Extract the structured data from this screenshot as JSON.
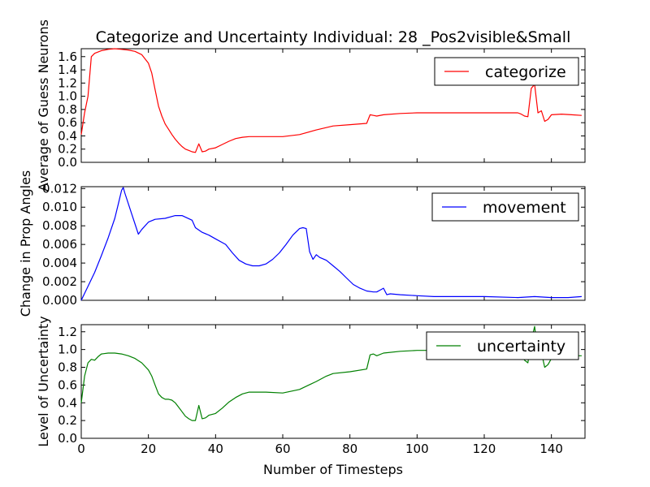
{
  "chart_data": {
    "type": "line",
    "title": "Categorize and Uncertainty Individual: 28 _Pos2visible&Small",
    "xlabel": "Number of Timesteps",
    "xlim": [
      0,
      150
    ],
    "xticks": [
      0,
      20,
      40,
      60,
      80,
      100,
      120,
      140
    ],
    "xtick_labels": [
      "0",
      "20",
      "40",
      "60",
      "80",
      "100",
      "120",
      "140"
    ],
    "grid": false,
    "panels": [
      {
        "ylabel": "Average of Guess Neurons",
        "ylim": [
          0,
          1.72
        ],
        "yticks": [
          0,
          0.2,
          0.4,
          0.6,
          0.8,
          1.0,
          1.2,
          1.4,
          1.6
        ],
        "ytick_labels": [
          "0.0",
          "0.2",
          "0.4",
          "0.6",
          "0.8",
          "1.0",
          "1.2",
          "1.4",
          "1.6"
        ],
        "legend_position": "top-right",
        "series": [
          {
            "name": "categorize",
            "color": "#ff0000",
            "points": [
              [
                0,
                0.42
              ],
              [
                1,
                0.75
              ],
              [
                2,
                1.0
              ],
              [
                3,
                1.6
              ],
              [
                4,
                1.65
              ],
              [
                6,
                1.69
              ],
              [
                8,
                1.71
              ],
              [
                10,
                1.72
              ],
              [
                12,
                1.71
              ],
              [
                14,
                1.7
              ],
              [
                16,
                1.68
              ],
              [
                18,
                1.63
              ],
              [
                20,
                1.5
              ],
              [
                21,
                1.35
              ],
              [
                22,
                1.1
              ],
              [
                23,
                0.85
              ],
              [
                24,
                0.7
              ],
              [
                25,
                0.58
              ],
              [
                26,
                0.5
              ],
              [
                27,
                0.42
              ],
              [
                28,
                0.35
              ],
              [
                29,
                0.29
              ],
              [
                30,
                0.24
              ],
              [
                31,
                0.2
              ],
              [
                32,
                0.18
              ],
              [
                33,
                0.16
              ],
              [
                34,
                0.15
              ],
              [
                35,
                0.28
              ],
              [
                36,
                0.16
              ],
              [
                37,
                0.17
              ],
              [
                38,
                0.2
              ],
              [
                40,
                0.22
              ],
              [
                42,
                0.27
              ],
              [
                44,
                0.32
              ],
              [
                46,
                0.36
              ],
              [
                48,
                0.38
              ],
              [
                50,
                0.39
              ],
              [
                55,
                0.39
              ],
              [
                60,
                0.39
              ],
              [
                65,
                0.42
              ],
              [
                70,
                0.49
              ],
              [
                75,
                0.55
              ],
              [
                80,
                0.57
              ],
              [
                85,
                0.59
              ],
              [
                86,
                0.72
              ],
              [
                87,
                0.71
              ],
              [
                88,
                0.7
              ],
              [
                90,
                0.72
              ],
              [
                95,
                0.74
              ],
              [
                100,
                0.75
              ],
              [
                110,
                0.75
              ],
              [
                120,
                0.75
              ],
              [
                130,
                0.75
              ],
              [
                131,
                0.73
              ],
              [
                132,
                0.7
              ],
              [
                133,
                0.69
              ],
              [
                134,
                1.12
              ],
              [
                135,
                1.18
              ],
              [
                136,
                0.75
              ],
              [
                137,
                0.78
              ],
              [
                138,
                0.62
              ],
              [
                139,
                0.65
              ],
              [
                140,
                0.72
              ],
              [
                143,
                0.73
              ],
              [
                146,
                0.72
              ],
              [
                149,
                0.71
              ]
            ]
          }
        ]
      },
      {
        "ylabel": "Change in Prop Angles",
        "ylim": [
          0,
          0.0122
        ],
        "yticks": [
          0,
          0.002,
          0.004,
          0.006,
          0.008,
          0.01,
          0.012
        ],
        "ytick_labels": [
          "0.000",
          "0.002",
          "0.004",
          "0.006",
          "0.008",
          "0.010",
          "0.012"
        ],
        "legend_position": "top-right",
        "series": [
          {
            "name": "movement",
            "color": "#0000ff",
            "points": [
              [
                0,
                0.0
              ],
              [
                2,
                0.0015
              ],
              [
                4,
                0.003
              ],
              [
                6,
                0.0048
              ],
              [
                8,
                0.0067
              ],
              [
                10,
                0.0088
              ],
              [
                11,
                0.0103
              ],
              [
                12,
                0.0118
              ],
              [
                12.5,
                0.0121
              ],
              [
                13,
                0.0115
              ],
              [
                15,
                0.0093
              ],
              [
                17,
                0.0071
              ],
              [
                18,
                0.0076
              ],
              [
                20,
                0.0084
              ],
              [
                22,
                0.0087
              ],
              [
                25,
                0.0088
              ],
              [
                28,
                0.0091
              ],
              [
                30,
                0.0091
              ],
              [
                33,
                0.0086
              ],
              [
                34,
                0.0078
              ],
              [
                36,
                0.0073
              ],
              [
                38,
                0.007
              ],
              [
                40,
                0.0066
              ],
              [
                42,
                0.0062
              ],
              [
                43,
                0.006
              ],
              [
                45,
                0.0051
              ],
              [
                47,
                0.0043
              ],
              [
                49,
                0.0039
              ],
              [
                51,
                0.0037
              ],
              [
                53,
                0.0037
              ],
              [
                55,
                0.0039
              ],
              [
                57,
                0.0044
              ],
              [
                59,
                0.0051
              ],
              [
                61,
                0.006
              ],
              [
                63,
                0.007
              ],
              [
                65,
                0.0077
              ],
              [
                66,
                0.0078
              ],
              [
                67,
                0.0077
              ],
              [
                68,
                0.0052
              ],
              [
                69,
                0.0044
              ],
              [
                70,
                0.0049
              ],
              [
                71,
                0.0046
              ],
              [
                73,
                0.0043
              ],
              [
                75,
                0.0037
              ],
              [
                77,
                0.0031
              ],
              [
                79,
                0.0024
              ],
              [
                81,
                0.0017
              ],
              [
                83,
                0.0013
              ],
              [
                85,
                0.001
              ],
              [
                87,
                0.0009
              ],
              [
                88,
                0.0009
              ],
              [
                89,
                0.0011
              ],
              [
                90,
                0.0013
              ],
              [
                91,
                0.0006
              ],
              [
                92,
                0.0007
              ],
              [
                95,
                0.0006
              ],
              [
                100,
                0.0005
              ],
              [
                105,
                0.0004
              ],
              [
                110,
                0.0004
              ],
              [
                120,
                0.0004
              ],
              [
                130,
                0.0003
              ],
              [
                135,
                0.0004
              ],
              [
                140,
                0.0003
              ],
              [
                145,
                0.0003
              ],
              [
                149,
                0.0004
              ]
            ]
          }
        ]
      },
      {
        "ylabel": "Level of Uncertainty",
        "ylim": [
          0,
          1.28
        ],
        "yticks": [
          0,
          0.2,
          0.4,
          0.6,
          0.8,
          1.0,
          1.2
        ],
        "ytick_labels": [
          "0.0",
          "0.2",
          "0.4",
          "0.6",
          "0.8",
          "1.0",
          "1.2"
        ],
        "legend_position": "top-right",
        "series": [
          {
            "name": "uncertainty",
            "color": "#008000",
            "points": [
              [
                0,
                0.4
              ],
              [
                1,
                0.7
              ],
              [
                2,
                0.85
              ],
              [
                3,
                0.89
              ],
              [
                4,
                0.88
              ],
              [
                5,
                0.92
              ],
              [
                6,
                0.95
              ],
              [
                8,
                0.96
              ],
              [
                10,
                0.96
              ],
              [
                12,
                0.95
              ],
              [
                14,
                0.93
              ],
              [
                16,
                0.9
              ],
              [
                18,
                0.85
              ],
              [
                20,
                0.77
              ],
              [
                21,
                0.7
              ],
              [
                22,
                0.6
              ],
              [
                23,
                0.5
              ],
              [
                24,
                0.46
              ],
              [
                25,
                0.44
              ],
              [
                26,
                0.44
              ],
              [
                27,
                0.43
              ],
              [
                28,
                0.4
              ],
              [
                29,
                0.35
              ],
              [
                30,
                0.3
              ],
              [
                31,
                0.25
              ],
              [
                32,
                0.22
              ],
              [
                33,
                0.2
              ],
              [
                34,
                0.2
              ],
              [
                35,
                0.37
              ],
              [
                36,
                0.22
              ],
              [
                37,
                0.23
              ],
              [
                38,
                0.26
              ],
              [
                40,
                0.28
              ],
              [
                42,
                0.34
              ],
              [
                44,
                0.41
              ],
              [
                46,
                0.46
              ],
              [
                48,
                0.5
              ],
              [
                50,
                0.52
              ],
              [
                55,
                0.52
              ],
              [
                60,
                0.51
              ],
              [
                65,
                0.55
              ],
              [
                70,
                0.64
              ],
              [
                73,
                0.7
              ],
              [
                75,
                0.73
              ],
              [
                80,
                0.75
              ],
              [
                85,
                0.78
              ],
              [
                86,
                0.94
              ],
              [
                87,
                0.95
              ],
              [
                88,
                0.93
              ],
              [
                90,
                0.96
              ],
              [
                95,
                0.98
              ],
              [
                100,
                0.99
              ],
              [
                110,
                0.99
              ],
              [
                120,
                0.99
              ],
              [
                130,
                0.99
              ],
              [
                131,
                0.95
              ],
              [
                132,
                0.88
              ],
              [
                133,
                0.85
              ],
              [
                134,
                1.1
              ],
              [
                135,
                1.26
              ],
              [
                136,
                0.95
              ],
              [
                137,
                0.97
              ],
              [
                138,
                0.8
              ],
              [
                139,
                0.83
              ],
              [
                140,
                0.9
              ],
              [
                143,
                0.92
              ],
              [
                146,
                0.93
              ],
              [
                149,
                0.93
              ]
            ]
          }
        ]
      }
    ]
  }
}
